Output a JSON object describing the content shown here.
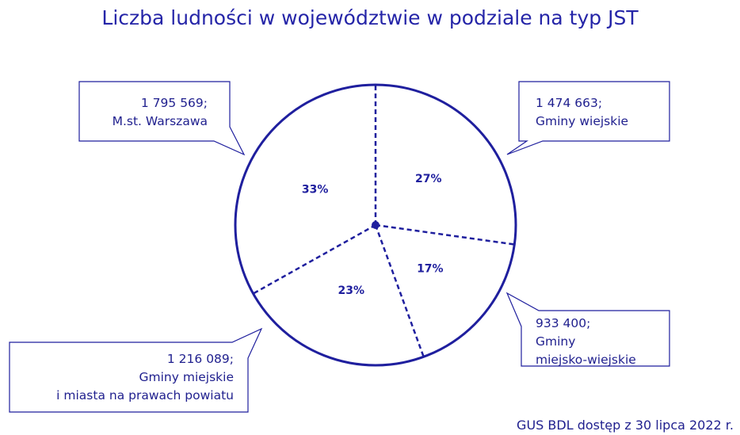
{
  "chart_data": {
    "type": "pie",
    "title": "Liczba ludności w województwie w podziale na typ JST",
    "categories": [
      "Gminy wiejskie",
      "Gminy\nmiejsko-wiejskie",
      "Gminy miejskie\ni miasta na prawach powiatu",
      "M.st. Warszawa"
    ],
    "values": [
      1474663,
      933400,
      1216089,
      1795569
    ],
    "value_labels": [
      "1 474 663;",
      "933 400;",
      "1 216 089;",
      "1 795 569;"
    ],
    "percent_labels": [
      "27%",
      "17%",
      "23%",
      "33%"
    ],
    "color": "#1f1f9e",
    "source": "GUS BDL dostęp z 30 lipca 2022 r."
  }
}
